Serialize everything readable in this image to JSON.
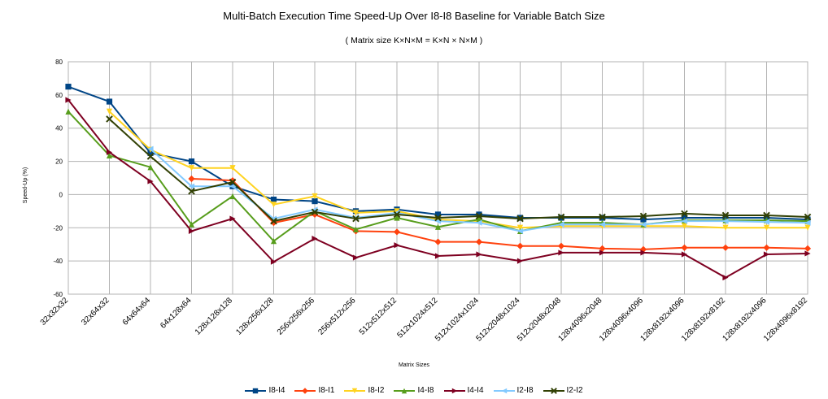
{
  "chart_data": {
    "type": "line",
    "title": "Multi-Batch Execution Time Speed-Up Over I8-I8 Baseline for Variable Batch Size",
    "subtitle": "( Matrix size K×N×M = K×N × N×M )",
    "xlabel": "Matrix Sizes",
    "ylabel": "Speed-Up (%)",
    "ylim": [
      -60,
      80
    ],
    "yticks": [
      -60,
      -40,
      -20,
      0,
      20,
      40,
      60,
      80
    ],
    "grid": true,
    "legend": "bottom",
    "categories": [
      "32x32x32",
      "32x64x32",
      "64x64x64",
      "64x128x64",
      "128x128x128",
      "128x256x128",
      "256x256x256",
      "256x512x256",
      "512x512x512",
      "512x1024x512",
      "512x1024x1024",
      "512x2048x1024",
      "512x2048x2048",
      "128x4096x2048",
      "128x4096x4096",
      "128x8192x4096",
      "128x8192x8192",
      "128x8192x4096",
      "128x4096x8192"
    ],
    "series": [
      {
        "name": "I8-I4",
        "color": "#004586",
        "marker": "square",
        "values": [
          65,
          56,
          25,
          20,
          5,
          -3,
          -4,
          -10,
          -9,
          -12,
          -12,
          -14,
          -14,
          -14,
          -15,
          -14,
          -14,
          -14,
          -15
        ]
      },
      {
        "name": "I8-I1",
        "color": "#ff420e",
        "marker": "diamond",
        "values": [
          null,
          null,
          null,
          9.5,
          8.5,
          -17,
          -12,
          -22,
          -22.5,
          -28.5,
          -28.5,
          -31,
          -31,
          -32.5,
          -33,
          -32,
          -32,
          -32,
          -32.5
        ]
      },
      {
        "name": "I8-I2",
        "color": "#ffd320",
        "marker": "triangle-down",
        "values": [
          null,
          50,
          27,
          16,
          16,
          -6,
          -1,
          -11,
          -10,
          -15,
          -16,
          -20,
          -19,
          -19,
          -19,
          -19,
          -20,
          -20,
          -20
        ]
      },
      {
        "name": "I4-I8",
        "color": "#579d1c",
        "marker": "triangle-up",
        "values": [
          50,
          23.5,
          16.5,
          -18,
          -1,
          -28,
          -10,
          -21,
          -14,
          -19.5,
          -15,
          -22,
          -17,
          -17,
          -18,
          -15.5,
          -15.5,
          -15.5,
          -16
        ]
      },
      {
        "name": "I4-I4",
        "color": "#7e0021",
        "marker": "triangle-right",
        "values": [
          57,
          25.5,
          8,
          -22,
          -14.5,
          -40.5,
          -26.5,
          -38,
          -30.5,
          -37,
          -36,
          -40,
          -35,
          -35,
          -35,
          -36,
          -50,
          -36,
          -35.5
        ]
      },
      {
        "name": "I2-I8",
        "color": "#83caff",
        "marker": "triangle-left",
        "values": [
          null,
          null,
          27.5,
          5,
          5,
          -14.5,
          -9,
          -14,
          -11,
          -16,
          -17,
          -22,
          -18,
          -18,
          -18,
          -16,
          -16,
          -16.5,
          -17
        ]
      },
      {
        "name": "I2-I2",
        "color": "#314004",
        "marker": "x",
        "values": [
          null,
          45.5,
          23,
          2,
          7.5,
          -16,
          -10.5,
          -14.5,
          -12,
          -14,
          -13,
          -14.5,
          -13.5,
          -13.5,
          -13,
          -11.5,
          -12.5,
          -12.5,
          -13.5
        ]
      }
    ]
  }
}
